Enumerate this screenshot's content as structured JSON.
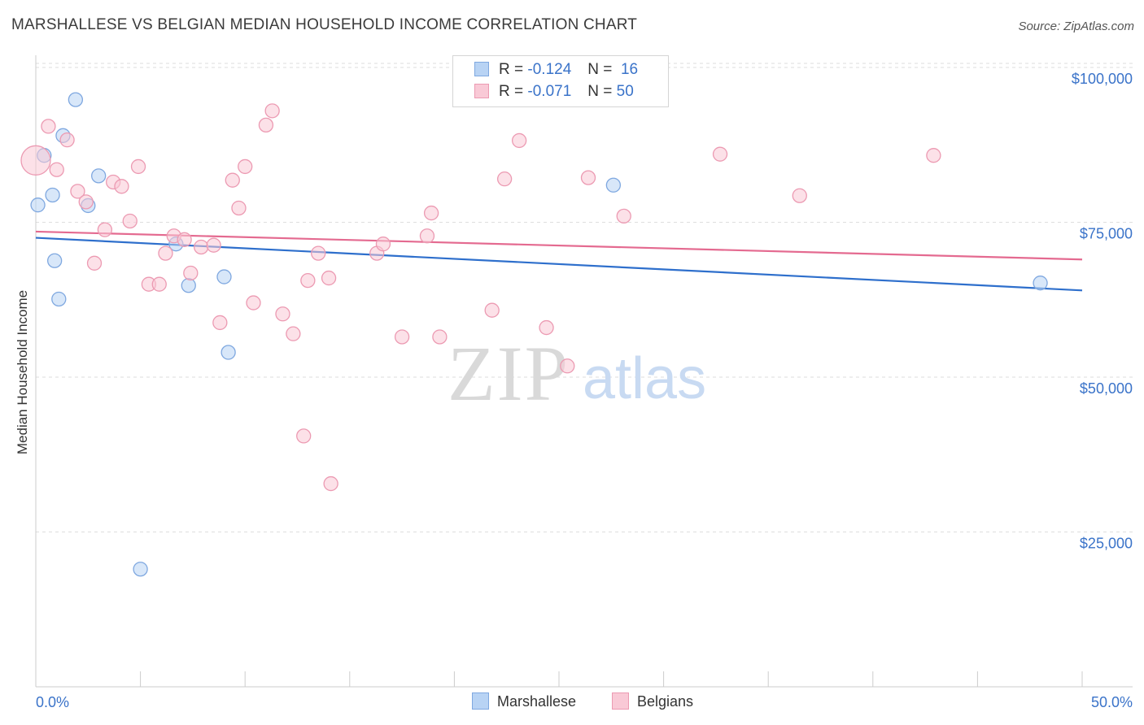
{
  "header": {
    "title": "MARSHALLESE VS BELGIAN MEDIAN HOUSEHOLD INCOME CORRELATION CHART",
    "source": "Source: ZipAtlas.com"
  },
  "legend": {
    "rows": [
      {
        "r_label": "R =",
        "r_value": "-0.124",
        "n_label": "N =",
        "n_value": "16"
      },
      {
        "r_label": "R =",
        "r_value": "-0.071",
        "n_label": "N =",
        "n_value": "50"
      }
    ],
    "bottom": [
      "Marshallese",
      "Belgians"
    ]
  },
  "watermark": {
    "zip": "ZIP",
    "atlas": "atlas"
  },
  "colors": {
    "blue_fill": "#b8d3f4",
    "blue_stroke": "#7fa8e0",
    "blue_line": "#2e6fcc",
    "pink_fill": "#f9c9d6",
    "pink_stroke": "#ec9ab2",
    "pink_line": "#e46a90",
    "tick_label": "#3a73c9",
    "grid": "#dedede",
    "axis": "#cccccc"
  },
  "chart_data": {
    "type": "scatter",
    "title": "MARSHALLESE VS BELGIAN MEDIAN HOUSEHOLD INCOME CORRELATION CHART",
    "xlabel": "",
    "ylabel": "Median Household Income",
    "xlim": [
      0,
      50
    ],
    "ylim": [
      0,
      104000
    ],
    "x_tick_labels": [
      "0.0%",
      "50.0%"
    ],
    "y_ticks": [
      25000,
      50000,
      75000,
      100000
    ],
    "y_tick_labels": [
      "$25,000",
      "$50,000",
      "$75,000",
      "$100,000"
    ],
    "grid": true,
    "series": [
      {
        "name": "Marshallese",
        "color": "blue",
        "r": -0.124,
        "n": 16,
        "trend": {
          "x": [
            0,
            50
          ],
          "y": [
            72500,
            64000
          ]
        },
        "points": [
          {
            "x": 0.4,
            "y": 85800
          },
          {
            "x": 1.9,
            "y": 94800
          },
          {
            "x": 1.3,
            "y": 89000
          },
          {
            "x": 3.0,
            "y": 82500
          },
          {
            "x": 0.1,
            "y": 77800
          },
          {
            "x": 0.8,
            "y": 79400
          },
          {
            "x": 2.5,
            "y": 77700
          },
          {
            "x": 0.9,
            "y": 68800
          },
          {
            "x": 1.1,
            "y": 62600
          },
          {
            "x": 6.7,
            "y": 71500
          },
          {
            "x": 7.3,
            "y": 64800
          },
          {
            "x": 9.0,
            "y": 66200
          },
          {
            "x": 9.2,
            "y": 54000
          },
          {
            "x": 5.0,
            "y": 19000
          },
          {
            "x": 27.6,
            "y": 81000
          },
          {
            "x": 48.0,
            "y": 65200
          }
        ]
      },
      {
        "name": "Belgians",
        "color": "pink",
        "r": -0.071,
        "n": 50,
        "trend": {
          "x": [
            0,
            50
          ],
          "y": [
            73500,
            69000
          ]
        },
        "points": [
          {
            "x": 0.0,
            "y": 85000
          },
          {
            "x": 0.6,
            "y": 90500
          },
          {
            "x": 1.5,
            "y": 88300
          },
          {
            "x": 1.0,
            "y": 83500
          },
          {
            "x": 2.0,
            "y": 80000
          },
          {
            "x": 2.4,
            "y": 78300
          },
          {
            "x": 3.7,
            "y": 81500
          },
          {
            "x": 4.1,
            "y": 80800
          },
          {
            "x": 4.9,
            "y": 84000
          },
          {
            "x": 3.3,
            "y": 73800
          },
          {
            "x": 4.5,
            "y": 75200
          },
          {
            "x": 2.8,
            "y": 68400
          },
          {
            "x": 5.4,
            "y": 65000
          },
          {
            "x": 5.9,
            "y": 65000
          },
          {
            "x": 6.2,
            "y": 70000
          },
          {
            "x": 6.6,
            "y": 72800
          },
          {
            "x": 7.1,
            "y": 72200
          },
          {
            "x": 7.4,
            "y": 66800
          },
          {
            "x": 7.9,
            "y": 71000
          },
          {
            "x": 8.5,
            "y": 71300
          },
          {
            "x": 8.8,
            "y": 58800
          },
          {
            "x": 9.4,
            "y": 81800
          },
          {
            "x": 9.7,
            "y": 77300
          },
          {
            "x": 10.0,
            "y": 84000
          },
          {
            "x": 10.4,
            "y": 62000
          },
          {
            "x": 11.0,
            "y": 90700
          },
          {
            "x": 11.3,
            "y": 93000
          },
          {
            "x": 11.8,
            "y": 60200
          },
          {
            "x": 12.3,
            "y": 57000
          },
          {
            "x": 12.8,
            "y": 40500
          },
          {
            "x": 13.0,
            "y": 65600
          },
          {
            "x": 13.5,
            "y": 70000
          },
          {
            "x": 14.0,
            "y": 66000
          },
          {
            "x": 14.1,
            "y": 32800
          },
          {
            "x": 16.3,
            "y": 70000
          },
          {
            "x": 16.6,
            "y": 71500
          },
          {
            "x": 17.5,
            "y": 56500
          },
          {
            "x": 18.9,
            "y": 76500
          },
          {
            "x": 18.7,
            "y": 72800
          },
          {
            "x": 19.3,
            "y": 56500
          },
          {
            "x": 21.8,
            "y": 60800
          },
          {
            "x": 22.4,
            "y": 82000
          },
          {
            "x": 23.1,
            "y": 88200
          },
          {
            "x": 24.4,
            "y": 58000
          },
          {
            "x": 25.4,
            "y": 51800
          },
          {
            "x": 26.4,
            "y": 82200
          },
          {
            "x": 28.1,
            "y": 76000
          },
          {
            "x": 32.7,
            "y": 86000
          },
          {
            "x": 36.5,
            "y": 79300
          },
          {
            "x": 42.9,
            "y": 85800
          }
        ]
      }
    ]
  }
}
